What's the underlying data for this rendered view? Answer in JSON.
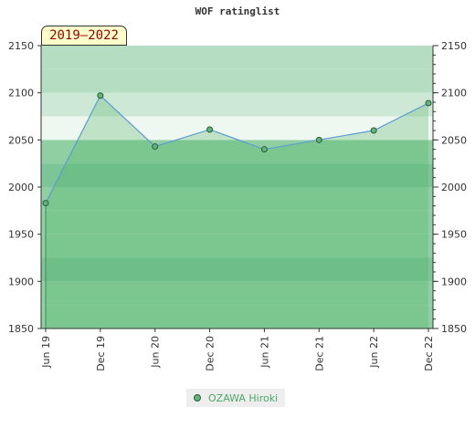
{
  "chart_data": {
    "type": "area",
    "title": "WOF ratinglist",
    "period_label": "2019–2022",
    "categories": [
      "Jun 19",
      "Dec 19",
      "Jun 20",
      "Dec 20",
      "Jun 21",
      "Dec 21",
      "Jun 22",
      "Dec 22"
    ],
    "series": [
      {
        "name": "OZAWA Hiroki",
        "values": [
          1983,
          2097,
          2043,
          2061,
          2040,
          2050,
          2060,
          2089
        ]
      }
    ],
    "ylim": [
      1850,
      2150
    ],
    "y_ticks": [
      1850,
      1900,
      1950,
      2000,
      2050,
      2100,
      2150
    ],
    "grid": true,
    "legend_position": "bottom-center",
    "colors": {
      "line": "#5b9bd5",
      "fill": "#4caf60",
      "marker": "#5fb57a",
      "marker_edge": "#2d5a3a",
      "band_dark": "#7cc596",
      "band_mid": "#8fcfa2",
      "band_light": "#b4ddc1",
      "band_lighter": "#cde8d5",
      "band_lightest": "#eef7f0"
    }
  }
}
